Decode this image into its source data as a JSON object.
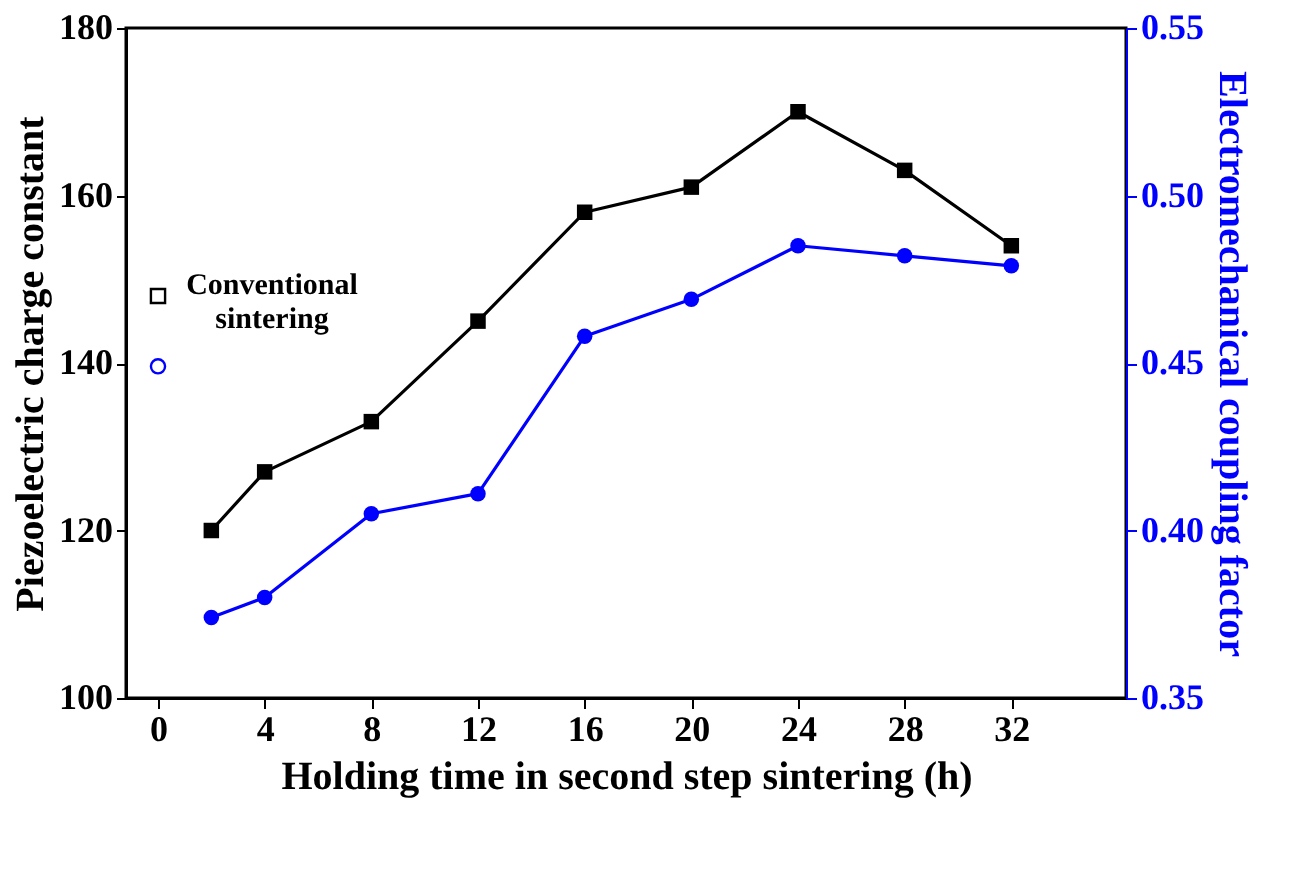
{
  "chart_data": {
    "type": "line",
    "xlabel": "Holding time in second step sintering (h)",
    "ylabel": "Piezoelectric charge constant",
    "y2label": "Electromechanical coupling factor",
    "xlim": [
      -1.2,
      36.3
    ],
    "xticks": [
      0,
      4,
      8,
      12,
      16,
      20,
      24,
      28,
      32
    ],
    "ylim": [
      100,
      180
    ],
    "yticks": [
      100,
      120,
      140,
      160,
      180
    ],
    "y2lim": [
      0.35,
      0.55
    ],
    "y2ticks": [
      {
        "value": 0.35,
        "label": "0.35"
      },
      {
        "value": 0.4,
        "label": "0.40"
      },
      {
        "value": 0.45,
        "label": "0.45"
      },
      {
        "value": 0.5,
        "label": "0.50"
      },
      {
        "value": 0.55,
        "label": "0.55"
      }
    ],
    "series": [
      {
        "color": "#000000",
        "marker": "square",
        "axis": "y",
        "x": [
          2,
          4,
          8,
          12,
          16,
          20,
          24,
          28,
          32
        ],
        "values": [
          120,
          127,
          133,
          145,
          158,
          161,
          170,
          163,
          154
        ]
      },
      {
        "color": "#0000ff",
        "marker": "circle",
        "axis": "y2",
        "x": [
          2,
          4,
          8,
          12,
          16,
          20,
          24,
          28,
          32
        ],
        "values": [
          0.374,
          0.38,
          0.405,
          0.411,
          0.458,
          0.469,
          0.485,
          0.482,
          0.479
        ]
      },
      {
        "type": "scatter",
        "color": "#000000",
        "marker": "square",
        "axis": "y",
        "x": [
          0
        ],
        "values": [
          148
        ]
      },
      {
        "type": "scatter",
        "color": "#0000ff",
        "marker": "circle",
        "axis": "y2",
        "x": [
          0
        ],
        "values": [
          0.449
        ]
      }
    ],
    "annotations": [
      "Conventional sintering"
    ],
    "grid": false
  }
}
